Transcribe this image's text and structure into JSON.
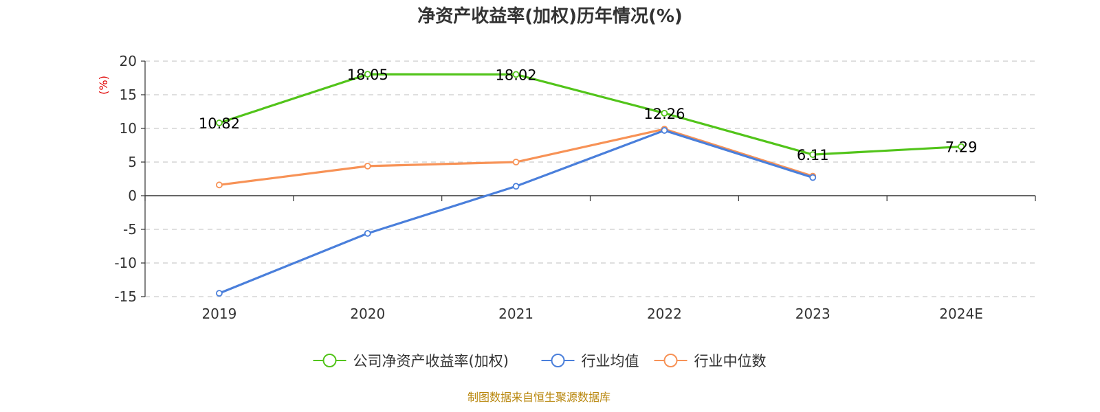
{
  "chart_data": {
    "type": "line",
    "title": "净资产收益率(加权)历年情况(%)",
    "ylabel": "(%)",
    "categories": [
      "2019",
      "2020",
      "2021",
      "2022",
      "2023",
      "2024E"
    ],
    "ylim": [
      -15,
      20
    ],
    "yticks": [
      20,
      15,
      10,
      5,
      0,
      -5,
      -10,
      -15
    ],
    "grid": true,
    "legend_position": "bottom",
    "series": [
      {
        "name": "公司净资产收益率(加权)",
        "color": "#52c41a",
        "values": [
          10.82,
          18.05,
          18.02,
          12.26,
          6.11,
          7.29
        ],
        "labels": [
          "10.82",
          "18.05",
          "18.02",
          "12.26",
          "6.11",
          "7.29"
        ]
      },
      {
        "name": "行业均值",
        "color": "#4a7fdb",
        "values": [
          -14.5,
          -5.6,
          1.4,
          9.7,
          2.7,
          null
        ]
      },
      {
        "name": "行业中位数",
        "color": "#f79256",
        "values": [
          1.6,
          4.4,
          5.0,
          9.9,
          2.9,
          null
        ]
      }
    ]
  },
  "source_note": "制图数据来自恒生聚源数据库"
}
